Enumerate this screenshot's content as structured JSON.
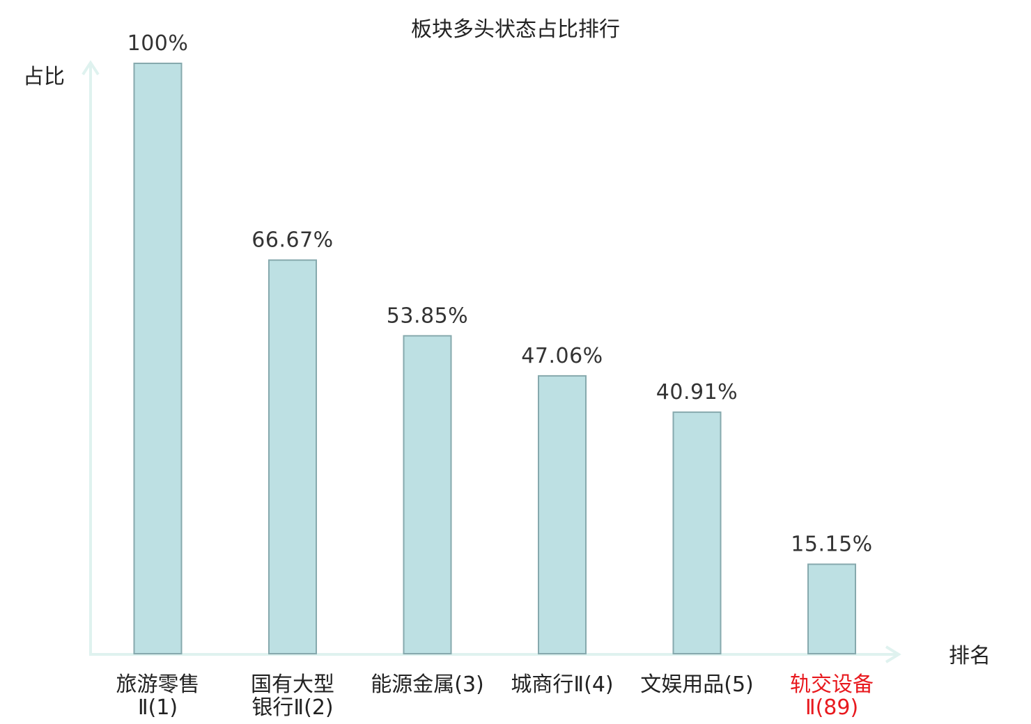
{
  "chart_data": {
    "type": "bar",
    "title": "板块多头状态占比排行",
    "xlabel": "排名",
    "ylabel": "占比",
    "ylim": [
      0,
      100
    ],
    "grid": false,
    "unit": "%",
    "categories": [
      {
        "name": "旅游零售Ⅱ",
        "rank": "(1)",
        "lines": [
          "旅游零售",
          "Ⅱ(1)"
        ],
        "highlight": false
      },
      {
        "name": "国有大型银行Ⅱ",
        "rank": "(2)",
        "lines": [
          "国有大型",
          "银行Ⅱ(2)"
        ],
        "highlight": false
      },
      {
        "name": "能源金属",
        "rank": "(3)",
        "lines": [
          "能源金属(3)"
        ],
        "highlight": false
      },
      {
        "name": "城商行Ⅱ",
        "rank": "(4)",
        "lines": [
          "城商行Ⅱ(4)"
        ],
        "highlight": false
      },
      {
        "name": "文娱用品",
        "rank": "(5)",
        "lines": [
          "文娱用品(5)"
        ],
        "highlight": false
      },
      {
        "name": "轨交设备Ⅱ",
        "rank": "(89)",
        "lines": [
          "轨交设备",
          "Ⅱ(89)"
        ],
        "highlight": true
      }
    ],
    "values": [
      100,
      66.67,
      53.85,
      47.06,
      40.91,
      15.15
    ],
    "value_labels": [
      "100%",
      "66.67%",
      "53.85%",
      "47.06%",
      "40.91%",
      "15.15%"
    ],
    "colors": {
      "bar_fill": "#bde0e3",
      "bar_stroke": "#86a9ad",
      "axis": "#dff2ef",
      "highlight_text": "#e8191e",
      "text": "#222222"
    }
  }
}
